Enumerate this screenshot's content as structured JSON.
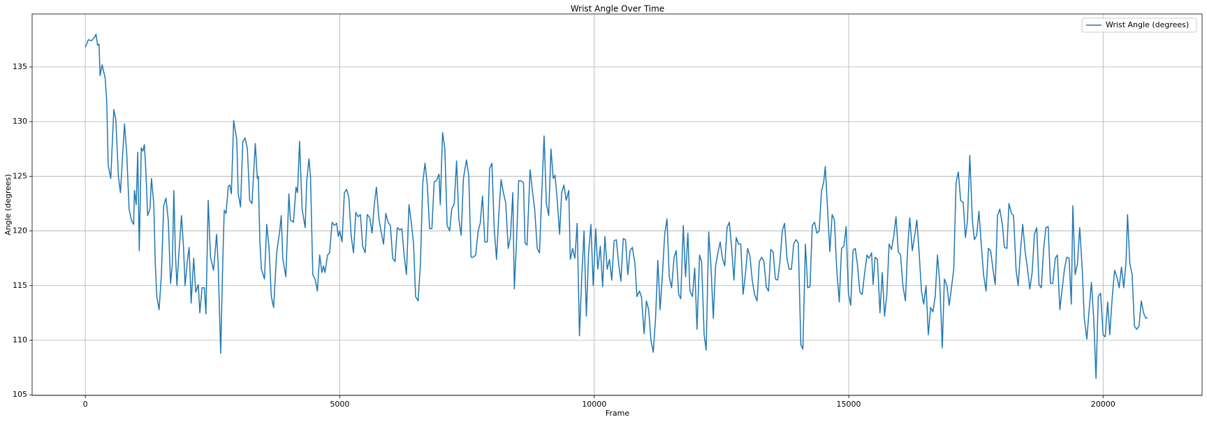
{
  "chart_data": {
    "type": "line",
    "title": "Wrist Angle Over Time",
    "x_label": "Frame",
    "y_label": "Angle (degrees)",
    "xlim": [
      -1045,
      21945
    ],
    "ylim": [
      104.95,
      139.85
    ],
    "xticks": [
      0,
      5000,
      10000,
      15000,
      20000
    ],
    "yticks": [
      105,
      110,
      115,
      120,
      125,
      130,
      135
    ],
    "grid": true,
    "legend": "upper right",
    "x": [
      0,
      60,
      120,
      180,
      210,
      240,
      270,
      290,
      330,
      390,
      420,
      450,
      500,
      530,
      560,
      600,
      650,
      690,
      770,
      815,
      860,
      905,
      950,
      965,
      1000,
      1030,
      1060,
      1100,
      1130,
      1160,
      1190,
      1225,
      1270,
      1300,
      1345,
      1375,
      1405,
      1450,
      1495,
      1540,
      1585,
      1630,
      1675,
      1710,
      1740,
      1770,
      1800,
      1840,
      1890,
      1930,
      1960,
      2010,
      2040,
      2080,
      2130,
      2170,
      2220,
      2250,
      2295,
      2340,
      2370,
      2415,
      2460,
      2520,
      2580,
      2610,
      2660,
      2700,
      2730,
      2765,
      2810,
      2840,
      2870,
      2915,
      2975,
      3005,
      3050,
      3095,
      3140,
      3185,
      3230,
      3275,
      3340,
      3380,
      3400,
      3430,
      3460,
      3520,
      3565,
      3610,
      3655,
      3700,
      3760,
      3820,
      3850,
      3880,
      3940,
      4000,
      4030,
      4090,
      4140,
      4170,
      4210,
      4260,
      4320,
      4350,
      4395,
      4425,
      4470,
      4515,
      4560,
      4605,
      4650,
      4680,
      4710,
      4760,
      4800,
      4850,
      4890,
      4940,
      4970,
      5000,
      5045,
      5090,
      5135,
      5180,
      5225,
      5270,
      5315,
      5360,
      5405,
      5450,
      5500,
      5540,
      5590,
      5635,
      5680,
      5720,
      5770,
      5810,
      5860,
      5905,
      5950,
      5995,
      6040,
      6085,
      6130,
      6175,
      6220,
      6265,
      6310,
      6360,
      6400,
      6450,
      6490,
      6540,
      6585,
      6630,
      6675,
      6720,
      6765,
      6810,
      6855,
      6900,
      6950,
      6975,
      7020,
      7065,
      7110,
      7160,
      7200,
      7250,
      7295,
      7340,
      7385,
      7430,
      7490,
      7535,
      7580,
      7625,
      7670,
      7720,
      7760,
      7805,
      7850,
      7900,
      7945,
      7990,
      8035,
      8080,
      8125,
      8170,
      8215,
      8260,
      8310,
      8355,
      8400,
      8430,
      8470,
      8515,
      8560,
      8610,
      8640,
      8680,
      8740,
      8790,
      8830,
      8880,
      8925,
      8970,
      9015,
      9060,
      9105,
      9150,
      9195,
      9230,
      9270,
      9320,
      9360,
      9405,
      9450,
      9500,
      9530,
      9575,
      9620,
      9665,
      9710,
      9755,
      9800,
      9845,
      9890,
      9935,
      9980,
      10030,
      10070,
      10120,
      10165,
      10210,
      10255,
      10300,
      10345,
      10390,
      10435,
      10480,
      10525,
      10570,
      10615,
      10660,
      10705,
      10750,
      10800,
      10840,
      10890,
      10930,
      10980,
      11025,
      11070,
      11115,
      11160,
      11205,
      11250,
      11295,
      11340,
      11385,
      11430,
      11475,
      11520,
      11570,
      11610,
      11660,
      11700,
      11750,
      11795,
      11840,
      11880,
      11930,
      11975,
      12020,
      12070,
      12110,
      12160,
      12200,
      12250,
      12295,
      12340,
      12385,
      12430,
      12475,
      12520,
      12565,
      12610,
      12655,
      12700,
      12745,
      12790,
      12835,
      12880,
      12925,
      12970,
      13015,
      13060,
      13105,
      13150,
      13200,
      13245,
      13290,
      13335,
      13380,
      13425,
      13470,
      13515,
      13560,
      13605,
      13650,
      13695,
      13740,
      13790,
      13830,
      13875,
      13920,
      13965,
      14010,
      14060,
      14100,
      14150,
      14195,
      14240,
      14285,
      14330,
      14375,
      14420,
      14465,
      14510,
      14540,
      14585,
      14630,
      14675,
      14720,
      14765,
      14815,
      14860,
      14905,
      14950,
      14995,
      15040,
      15085,
      15130,
      15175,
      15220,
      15265,
      15310,
      15360,
      15400,
      15450,
      15480,
      15520,
      15565,
      15615,
      15660,
      15705,
      15750,
      15795,
      15840,
      15885,
      15930,
      15975,
      16020,
      16065,
      16115,
      16160,
      16200,
      16250,
      16295,
      16340,
      16385,
      16430,
      16475,
      16520,
      16565,
      16610,
      16655,
      16700,
      16745,
      16790,
      16840,
      16880,
      16930,
      16975,
      17020,
      17065,
      17110,
      17155,
      17200,
      17250,
      17295,
      17335,
      17380,
      17430,
      17470,
      17515,
      17560,
      17605,
      17650,
      17700,
      17745,
      17790,
      17835,
      17880,
      17925,
      17970,
      18020,
      18060,
      18110,
      18150,
      18200,
      18240,
      18290,
      18330,
      18380,
      18420,
      18470,
      18510,
      18560,
      18605,
      18650,
      18695,
      18740,
      18785,
      18830,
      18875,
      18920,
      18965,
      19010,
      19060,
      19100,
      19150,
      19190,
      19240,
      19285,
      19330,
      19375,
      19405,
      19450,
      19495,
      19540,
      19590,
      19630,
      19680,
      19720,
      19770,
      19815,
      19860,
      19905,
      19950,
      20000,
      20040,
      20090,
      20130,
      20180,
      20225,
      20270,
      20315,
      20360,
      20405,
      20450,
      20480,
      20525,
      20570,
      20615,
      20660,
      20705,
      20750,
      20795,
      20840,
      20870
    ],
    "series": [
      {
        "name": "Wrist Angle (degrees)",
        "color": "#1f77b4",
        "values": [
          136.8,
          137.5,
          137.4,
          137.7,
          138.0,
          137.0,
          137.1,
          134.2,
          135.2,
          134,
          132,
          126,
          124.8,
          128,
          131.1,
          130.2,
          125,
          123.5,
          129.8,
          127,
          122,
          121,
          120.6,
          123.7,
          122.4,
          127.2,
          118.2,
          127.6,
          127.3,
          127.9,
          125.5,
          121.4,
          122,
          124.8,
          122.5,
          117,
          114,
          112.8,
          116,
          122.3,
          123,
          121,
          115.2,
          117,
          123.7,
          118,
          115,
          118,
          121.4,
          118.5,
          115,
          117.5,
          118.5,
          113.4,
          117.5,
          114.4,
          115.1,
          112.5,
          114.8,
          114.8,
          112.4,
          122.8,
          117.6,
          116.4,
          119.7,
          117,
          108.8,
          117,
          121.9,
          121.6,
          124.1,
          124.2,
          123.4,
          130.1,
          128.4,
          123.4,
          122.2,
          128.2,
          128.5,
          127.5,
          122.8,
          122.5,
          128,
          124.8,
          125,
          119,
          116.5,
          115.6,
          120.6,
          118.5,
          114,
          113,
          118,
          120,
          121.4,
          117.5,
          115.8,
          123.4,
          121,
          120.8,
          124,
          123.5,
          128.2,
          122,
          120.3,
          124.5,
          126.6,
          125,
          116,
          115.6,
          114.5,
          117.8,
          116.2,
          116.8,
          116.2,
          117.8,
          118,
          120.8,
          120.5,
          120.7,
          119.5,
          120,
          119,
          123.5,
          123.8,
          123,
          119.5,
          118.0,
          121.7,
          121.3,
          121.5,
          118.6,
          118,
          121.5,
          121.2,
          119.8,
          122.5,
          124,
          121.1,
          120,
          118.8,
          121.6,
          120.8,
          120.5,
          117.5,
          117.2,
          120.3,
          120.1,
          120.2,
          117.8,
          116,
          122.4,
          121,
          118.8,
          114,
          113.6,
          117,
          124.3,
          126.2,
          124.2,
          120.2,
          120.2,
          124.5,
          124.6,
          125.2,
          122.4,
          129,
          127.5,
          120.5,
          120,
          122,
          122.5,
          126.4,
          121.1,
          119.6,
          124.8,
          126.5,
          125,
          117.6,
          117.6,
          117.8,
          120,
          120.7,
          123.2,
          119,
          119,
          125.7,
          126.2,
          120.2,
          117.4,
          121.5,
          124.7,
          123.5,
          122.6,
          118.4,
          119.5,
          123.5,
          114.7,
          118.6,
          124.6,
          124.6,
          124.4,
          118.9,
          118.7,
          125.6,
          123.5,
          122,
          118.4,
          118,
          123.5,
          128.7,
          122.5,
          121.4,
          127.5,
          124.8,
          125.1,
          123,
          119.7,
          123.5,
          124.2,
          122.8,
          123.7,
          117.4,
          118.4,
          117.5,
          120.7,
          110.4,
          115.8,
          120,
          112.2,
          118,
          120.6,
          115,
          120.2,
          116.5,
          118.6,
          114.9,
          119.5,
          116.5,
          117.4,
          115.5,
          119.1,
          119.2,
          117,
          115.4,
          119.3,
          119.2,
          116,
          118.2,
          118.5,
          117,
          114,
          114.5,
          113.9,
          110.6,
          113.6,
          112.8,
          110,
          108.9,
          112,
          117.3,
          112.8,
          116,
          119.7,
          121.1,
          115.8,
          114.8,
          117.6,
          118.2,
          114.2,
          113.8,
          120.5,
          115.8,
          119.8,
          114.5,
          114,
          116.6,
          111,
          117.8,
          117.2,
          110.5,
          109.1,
          119.9,
          116.7,
          112,
          116.8,
          118,
          119,
          117.5,
          116.8,
          120.3,
          120.8,
          118.5,
          115.5,
          119.4,
          118.8,
          118.8,
          114.2,
          116,
          118.4,
          117.7,
          115.5,
          114.2,
          113.6,
          117.2,
          117.6,
          117.2,
          114.9,
          114.5,
          118.3,
          118.1,
          115.6,
          115.5,
          117.2,
          120,
          120.7,
          117.4,
          116.5,
          116.5,
          118.8,
          119.2,
          118.9,
          109.6,
          109.2,
          118.8,
          114.8,
          114.9,
          120.5,
          120.8,
          119.8,
          120,
          123.6,
          124.5,
          125.9,
          122,
          118.1,
          121.5,
          121,
          116.5,
          113.5,
          118.4,
          118.6,
          120.4,
          114.3,
          113.2,
          118.2,
          118.4,
          116.8,
          114.4,
          114.2,
          116,
          117.8,
          117.5,
          118,
          115.1,
          117.6,
          117.4,
          112.5,
          116.2,
          112.2,
          114.2,
          118.8,
          118.3,
          119.5,
          121.3,
          118.1,
          117.8,
          115,
          113.6,
          118.5,
          121.2,
          118.2,
          119.5,
          121,
          118,
          114.5,
          113.3,
          115,
          110.5,
          113,
          112.6,
          114,
          117.8,
          115.2,
          109.3,
          115.6,
          115,
          113.2,
          114.8,
          116.5,
          124.4,
          125.4,
          122.8,
          122.6,
          119.4,
          121,
          126.9,
          121,
          119.2,
          119.6,
          121.8,
          118.8,
          116,
          114.5,
          118.4,
          118.2,
          116.5,
          115.1,
          121.4,
          122,
          120.6,
          118.5,
          118.4,
          122.5,
          121.6,
          121.4,
          116.4,
          115,
          118.4,
          120.6,
          118,
          116.7,
          114.7,
          116.2,
          119.7,
          120.3,
          115.1,
          114.8,
          118.3,
          120.3,
          120.4,
          115.2,
          115.2,
          117.5,
          117.8,
          112.8,
          114.5,
          116.5,
          117.6,
          117.5,
          113.3,
          122.3,
          116,
          117,
          120.3,
          116.5,
          112,
          110.1,
          112.5,
          115.3,
          112,
          106.5,
          114,
          114.3,
          110.5,
          110.3,
          113.5,
          110.5,
          114,
          116.4,
          115.8,
          114.8,
          116.7,
          114.8,
          117.2,
          121.5,
          117,
          116,
          111.3,
          111,
          111.3,
          113.6,
          112.5,
          112,
          112.1
        ]
      }
    ]
  }
}
